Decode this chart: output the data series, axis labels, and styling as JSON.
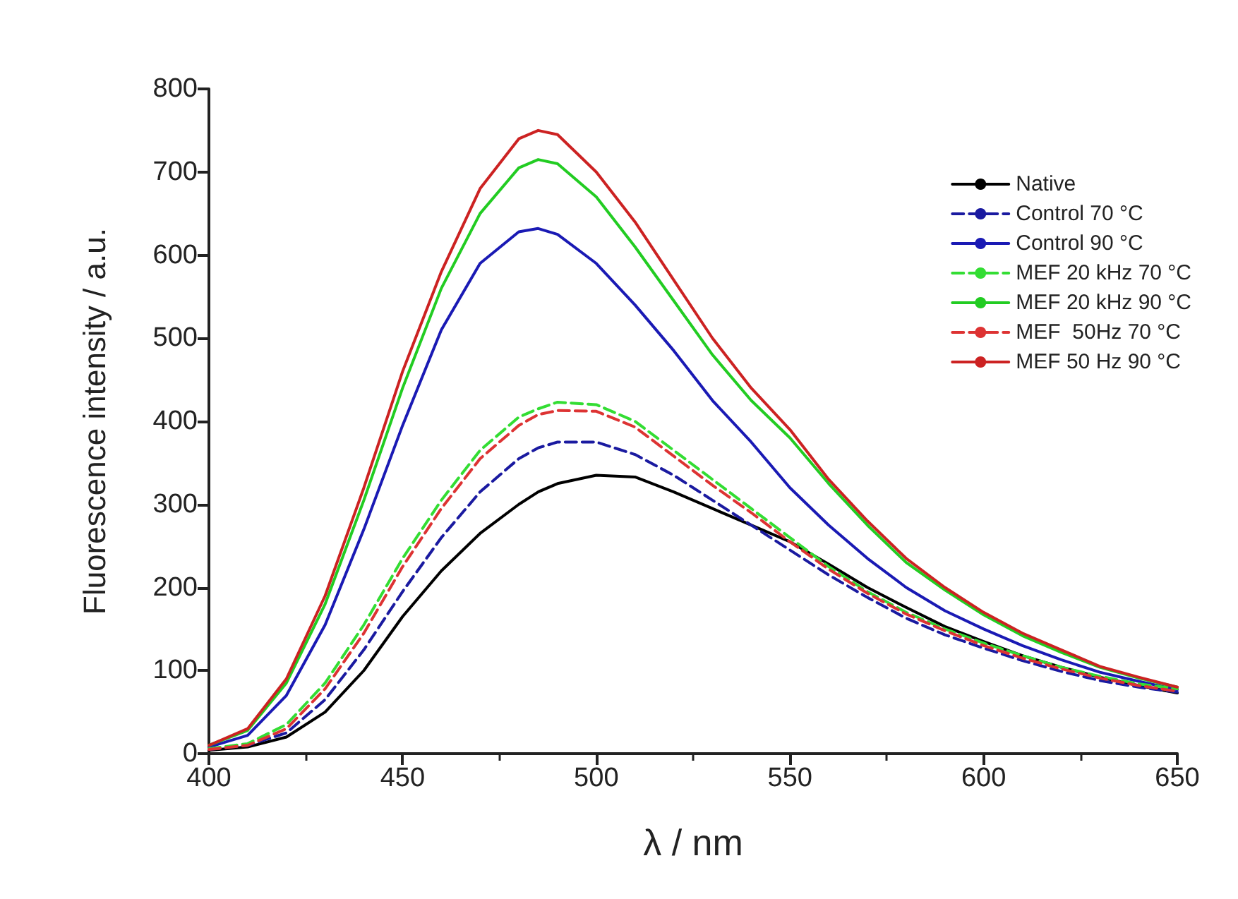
{
  "chart_data": {
    "type": "line",
    "xlabel": "λ / nm",
    "ylabel": "Fluorescence intensity / a.u.",
    "x": [
      400,
      410,
      420,
      430,
      440,
      450,
      460,
      470,
      480,
      485,
      490,
      500,
      510,
      520,
      530,
      540,
      550,
      560,
      570,
      580,
      590,
      600,
      610,
      620,
      630,
      640,
      650
    ],
    "xlim": [
      400,
      650
    ],
    "xticks": [
      400,
      450,
      500,
      550,
      600,
      650
    ],
    "ylim": [
      0,
      800
    ],
    "yticks": [
      0,
      100,
      200,
      300,
      400,
      500,
      600,
      700,
      800
    ],
    "grid": false,
    "legend": "top right",
    "marker": "none",
    "series": [
      {
        "name": "Native",
        "color": "#000000",
        "line_style": "solid",
        "values": [
          4,
          8,
          20,
          50,
          100,
          165,
          220,
          265,
          300,
          315,
          325,
          335,
          333,
          315,
          295,
          275,
          255,
          228,
          200,
          176,
          153,
          135,
          118,
          104,
          92,
          82,
          73
        ]
      },
      {
        "name": "Control 70 °C",
        "color": "#1a1aa0",
        "line_style": "dashed",
        "values": [
          5,
          10,
          25,
          65,
          125,
          195,
          260,
          315,
          355,
          368,
          375,
          375,
          360,
          335,
          305,
          275,
          245,
          215,
          188,
          163,
          143,
          127,
          112,
          99,
          88,
          80,
          74
        ]
      },
      {
        "name": "Control 90 °C",
        "color": "#1a1ab4",
        "line_style": "solid",
        "values": [
          8,
          22,
          70,
          155,
          270,
          395,
          510,
          590,
          628,
          632,
          625,
          590,
          540,
          485,
          425,
          375,
          320,
          275,
          235,
          200,
          172,
          150,
          130,
          113,
          98,
          87,
          77
        ]
      },
      {
        "name": "MEF 20 kHz 70 °C",
        "color": "#33dd33",
        "line_style": "dashed",
        "values": [
          6,
          12,
          35,
          85,
          155,
          235,
          305,
          365,
          405,
          415,
          423,
          420,
          400,
          365,
          330,
          295,
          260,
          225,
          195,
          170,
          150,
          133,
          118,
          104,
          93,
          84,
          78
        ]
      },
      {
        "name": "MEF 20 kHz 90 °C",
        "color": "#22cc22",
        "line_style": "solid",
        "values": [
          10,
          28,
          85,
          180,
          305,
          440,
          560,
          650,
          705,
          715,
          710,
          670,
          610,
          545,
          480,
          425,
          380,
          325,
          275,
          230,
          197,
          167,
          142,
          122,
          104,
          91,
          80
        ]
      },
      {
        "name": "MEF  50Hz 70 °C",
        "color": "#dd3333",
        "line_style": "dashed",
        "values": [
          5,
          10,
          30,
          78,
          145,
          225,
          295,
          355,
          395,
          408,
          413,
          412,
          393,
          358,
          323,
          290,
          255,
          222,
          193,
          168,
          148,
          130,
          115,
          102,
          91,
          82,
          75
        ]
      },
      {
        "name": "MEF 50 Hz 90 °C",
        "color": "#cc2222",
        "line_style": "solid",
        "values": [
          10,
          30,
          90,
          190,
          320,
          460,
          580,
          680,
          740,
          750,
          745,
          700,
          640,
          570,
          500,
          440,
          390,
          330,
          280,
          235,
          200,
          170,
          145,
          125,
          105,
          92,
          80
        ]
      }
    ]
  }
}
